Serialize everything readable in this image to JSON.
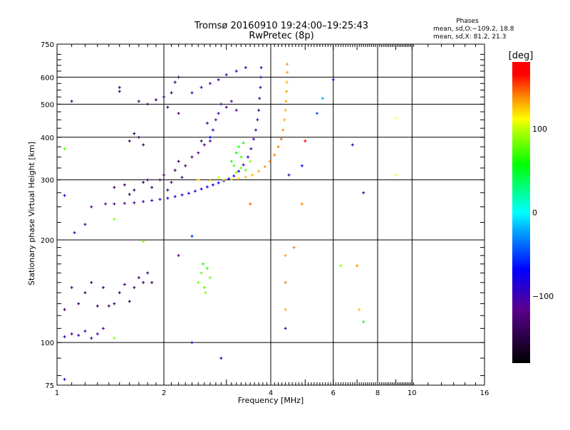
{
  "chart_data": {
    "type": "scatter",
    "title": "Tromsø 20160910 19:24:00–19:25:43",
    "subtitle": "RwPretec (8p)",
    "xlabel": "Frequency [MHz]",
    "ylabel": "Stationary phase Virtual Height [km]",
    "xscale": "log",
    "yscale": "log",
    "xlim": [
      1,
      16
    ],
    "ylim": [
      75,
      750
    ],
    "xticks": [
      1,
      2,
      4,
      6,
      8,
      10,
      16
    ],
    "yticks": [
      75,
      100,
      200,
      300,
      400,
      500,
      600,
      750
    ],
    "xgrid": [
      2,
      4,
      6,
      8,
      10
    ],
    "ygrid": [
      100,
      200,
      300,
      400,
      500,
      600
    ],
    "grid": true,
    "phase_box": {
      "title": "Phases",
      "line_o": "mean, sd,O:−109.2, 18.8",
      "line_x": "mean, sd,X:  81.2, 21.3"
    },
    "colorbar": {
      "label": "[deg]",
      "range": [
        -180,
        180
      ],
      "ticks": [
        100,
        0,
        -100
      ],
      "tick_labels": [
        "100",
        "0",
        "−100"
      ],
      "colors": [
        "#000000",
        "#5a0080",
        "#0000ff",
        "#00ffff",
        "#00ff00",
        "#ffff00",
        "#ff8000",
        "#ff0000"
      ]
    },
    "points_format": [
      "frequency_MHz",
      "height_km",
      "phase_deg"
    ],
    "points": [
      [
        1.37,
        255,
        -120
      ],
      [
        1.45,
        255,
        -125
      ],
      [
        1.55,
        256,
        -118
      ],
      [
        1.65,
        257,
        -115
      ],
      [
        1.75,
        259,
        -112
      ],
      [
        1.85,
        261,
        -110
      ],
      [
        1.95,
        263,
        -110
      ],
      [
        2.05,
        265,
        -108
      ],
      [
        2.15,
        268,
        -106
      ],
      [
        2.25,
        271,
        -105
      ],
      [
        2.35,
        274,
        -104
      ],
      [
        2.45,
        278,
        -103
      ],
      [
        2.55,
        282,
        -102
      ],
      [
        2.65,
        286,
        -100
      ],
      [
        2.75,
        290,
        -100
      ],
      [
        2.85,
        294,
        -98
      ],
      [
        2.95,
        298,
        -96
      ],
      [
        3.05,
        302,
        -100
      ],
      [
        3.15,
        308,
        -105
      ],
      [
        3.25,
        318,
        -105
      ],
      [
        3.35,
        332,
        -108
      ],
      [
        3.45,
        350,
        -110
      ],
      [
        3.52,
        370,
        -110
      ],
      [
        3.58,
        395,
        -112
      ],
      [
        3.63,
        420,
        -112
      ],
      [
        3.67,
        450,
        -114
      ],
      [
        3.7,
        480,
        -114
      ],
      [
        3.72,
        520,
        -115
      ],
      [
        3.74,
        560,
        -115
      ],
      [
        3.75,
        600,
        -116
      ],
      [
        3.76,
        640,
        -116
      ],
      [
        2.95,
        300,
        110
      ],
      [
        3.1,
        301,
        105
      ],
      [
        3.25,
        303,
        110
      ],
      [
        3.4,
        306,
        115
      ],
      [
        3.55,
        310,
        118
      ],
      [
        3.7,
        318,
        120
      ],
      [
        3.85,
        328,
        122
      ],
      [
        3.98,
        340,
        125
      ],
      [
        4.1,
        355,
        128
      ],
      [
        4.2,
        375,
        130
      ],
      [
        4.28,
        395,
        135
      ],
      [
        4.33,
        420,
        125
      ],
      [
        4.37,
        450,
        120
      ],
      [
        4.4,
        480,
        118
      ],
      [
        4.42,
        510,
        120
      ],
      [
        4.43,
        545,
        122
      ],
      [
        4.44,
        580,
        118
      ],
      [
        4.45,
        620,
        120
      ],
      [
        4.45,
        655,
        125
      ],
      [
        2.5,
        300,
        110
      ],
      [
        2.7,
        298,
        100
      ],
      [
        2.85,
        305,
        90
      ],
      [
        1.45,
        285,
        -140
      ],
      [
        1.55,
        290,
        -140
      ],
      [
        1.65,
        280,
        -145
      ],
      [
        1.75,
        295,
        -138
      ],
      [
        1.85,
        285,
        -140
      ],
      [
        1.95,
        300,
        -135
      ],
      [
        2.0,
        310,
        -140
      ],
      [
        2.1,
        295,
        -135
      ],
      [
        2.15,
        320,
        -140
      ],
      [
        2.2,
        340,
        -138
      ],
      [
        2.25,
        305,
        -132
      ],
      [
        2.05,
        280,
        -140
      ],
      [
        1.6,
        272,
        -142
      ],
      [
        1.8,
        300,
        -138
      ],
      [
        2.3,
        330,
        -135
      ],
      [
        2.4,
        350,
        -130
      ],
      [
        2.5,
        360,
        -120
      ],
      [
        2.6,
        380,
        -125
      ],
      [
        2.7,
        390,
        -115
      ],
      [
        2.75,
        420,
        -110
      ],
      [
        2.8,
        450,
        -120
      ],
      [
        2.65,
        440,
        -125
      ],
      [
        2.55,
        390,
        -135
      ],
      [
        2.85,
        470,
        -115
      ],
      [
        2.9,
        500,
        -130
      ],
      [
        3.0,
        490,
        -125
      ],
      [
        3.1,
        510,
        -120
      ],
      [
        3.2,
        480,
        -118
      ],
      [
        2.7,
        400,
        -95
      ],
      [
        1.7,
        510,
        -135
      ],
      [
        1.8,
        500,
        -140
      ],
      [
        1.9,
        515,
        -138
      ],
      [
        2.0,
        525,
        -140
      ],
      [
        2.05,
        490,
        -135
      ],
      [
        2.1,
        540,
        -140
      ],
      [
        2.15,
        580,
        -138
      ],
      [
        2.2,
        600,
        -140
      ],
      [
        2.2,
        470,
        -135
      ],
      [
        1.5,
        560,
        -140
      ],
      [
        1.5,
        545,
        -140
      ],
      [
        1.6,
        390,
        -140
      ],
      [
        1.65,
        410,
        -140
      ],
      [
        1.7,
        400,
        -140
      ],
      [
        1.75,
        380,
        -140
      ],
      [
        2.4,
        540,
        -115
      ],
      [
        2.55,
        560,
        -112
      ],
      [
        2.7,
        575,
        -115
      ],
      [
        2.85,
        590,
        -112
      ],
      [
        3.0,
        610,
        -115
      ],
      [
        3.2,
        625,
        -112
      ],
      [
        3.4,
        640,
        -110
      ],
      [
        3.1,
        340,
        60
      ],
      [
        3.2,
        360,
        55
      ],
      [
        3.25,
        375,
        60
      ],
      [
        3.3,
        350,
        65
      ],
      [
        3.35,
        385,
        55
      ],
      [
        3.15,
        330,
        70
      ],
      [
        3.3,
        325,
        75
      ],
      [
        3.2,
        315,
        80
      ],
      [
        3.4,
        320,
        70
      ],
      [
        3.5,
        340,
        80
      ],
      [
        2.5,
        150,
        75
      ],
      [
        2.55,
        160,
        70
      ],
      [
        2.6,
        145,
        70
      ],
      [
        2.65,
        165,
        65
      ],
      [
        2.7,
        155,
        75
      ],
      [
        2.58,
        170,
        60
      ],
      [
        2.62,
        140,
        78
      ],
      [
        1.05,
        125,
        -140
      ],
      [
        1.1,
        145,
        -135
      ],
      [
        1.15,
        130,
        -140
      ],
      [
        1.2,
        140,
        -138
      ],
      [
        1.25,
        150,
        -135
      ],
      [
        1.3,
        128,
        -142
      ],
      [
        1.35,
        145,
        -140
      ],
      [
        1.4,
        128,
        -140
      ],
      [
        1.45,
        130,
        -140
      ],
      [
        1.5,
        140,
        -138
      ],
      [
        1.55,
        148,
        -135
      ],
      [
        1.6,
        132,
        -140
      ],
      [
        1.65,
        145,
        -138
      ],
      [
        1.7,
        155,
        -135
      ],
      [
        1.75,
        150,
        -140
      ],
      [
        1.8,
        160,
        -135
      ],
      [
        1.85,
        150,
        -138
      ],
      [
        1.05,
        104,
        -110
      ],
      [
        1.1,
        106,
        -112
      ],
      [
        1.15,
        105,
        -115
      ],
      [
        1.2,
        108,
        -112
      ],
      [
        1.25,
        103,
        -115
      ],
      [
        1.3,
        106,
        -110
      ],
      [
        1.35,
        110,
        -118
      ],
      [
        1.12,
        210,
        -115
      ],
      [
        1.2,
        222,
        -112
      ],
      [
        1.25,
        250,
        -120
      ],
      [
        1.05,
        270,
        -105
      ],
      [
        4.4,
        180,
        120
      ],
      [
        4.4,
        150,
        130
      ],
      [
        4.4,
        125,
        120
      ],
      [
        4.4,
        110,
        -110
      ],
      [
        4.65,
        190,
        130
      ],
      [
        6.3,
        168,
        80
      ],
      [
        7.0,
        168,
        125
      ],
      [
        7.1,
        125,
        115
      ],
      [
        7.3,
        115,
        60
      ],
      [
        4.5,
        310,
        -115
      ],
      [
        4.9,
        330,
        -90
      ],
      [
        5.0,
        390,
        170
      ],
      [
        5.4,
        470,
        -70
      ],
      [
        5.6,
        520,
        -40
      ],
      [
        6.0,
        590,
        -105
      ],
      [
        6.8,
        380,
        -110
      ],
      [
        7.3,
        275,
        -110
      ],
      [
        9.0,
        310,
        100
      ],
      [
        9.0,
        455,
        100
      ],
      [
        4.9,
        255,
        130
      ],
      [
        3.5,
        255,
        140
      ],
      [
        2.4,
        205,
        -80
      ],
      [
        2.2,
        180,
        -120
      ],
      [
        2.9,
        90,
        -110
      ],
      [
        2.4,
        100,
        -110
      ],
      [
        1.45,
        103,
        80
      ],
      [
        1.05,
        78,
        -110
      ],
      [
        1.1,
        510,
        -130
      ],
      [
        1.05,
        370,
        70
      ],
      [
        1.45,
        230,
        80
      ],
      [
        1.75,
        198,
        80
      ]
    ]
  }
}
